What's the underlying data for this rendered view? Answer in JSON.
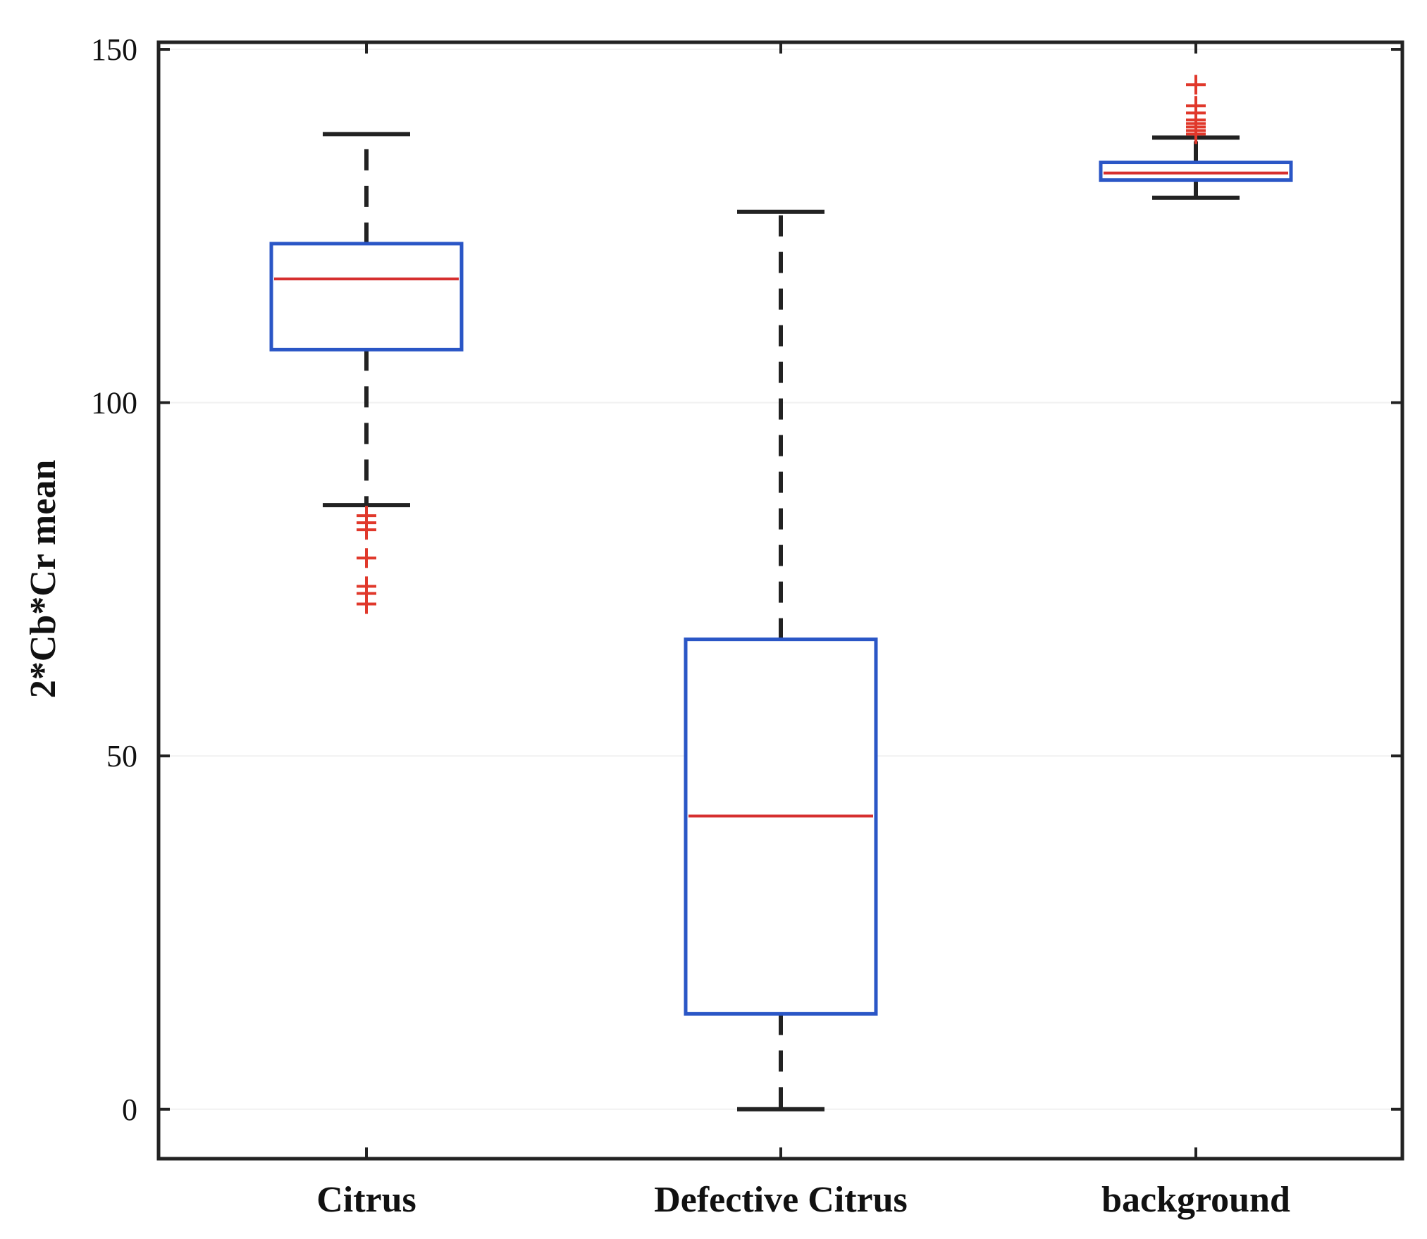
{
  "chart_data": {
    "type": "boxplot",
    "title": "",
    "xlabel": "",
    "ylabel": "2*Cb*Cr mean",
    "ylim": [
      -7,
      151
    ],
    "yticks": [
      0,
      50,
      100,
      150
    ],
    "ytick_labels": [
      "0",
      "50",
      "100",
      "150"
    ],
    "categories": [
      "Citrus",
      "Defective Citrus",
      "background"
    ],
    "boxes": [
      {
        "category": "Citrus",
        "whisker_low": 85.5,
        "q1": 107.5,
        "median": 117.5,
        "q3": 122.5,
        "whisker_high": 138,
        "outliers": [
          84,
          83,
          82,
          78,
          74,
          73,
          71.5
        ]
      },
      {
        "category": "Defective Citrus",
        "whisker_low": 0,
        "q1": 13.5,
        "median": 41.5,
        "q3": 66.5,
        "whisker_high": 127,
        "outliers": []
      },
      {
        "category": "background",
        "whisker_low": 129,
        "q1": 131.5,
        "median": 132.5,
        "q3": 134,
        "whisker_high": 137.5,
        "outliers": [
          138,
          138.5,
          139,
          139.5,
          140,
          141,
          142,
          145
        ]
      }
    ],
    "colors": {
      "box": "#2a56c6",
      "median": "#d62f2f",
      "whisker": "#222222",
      "outlier": "#e0382b"
    }
  }
}
